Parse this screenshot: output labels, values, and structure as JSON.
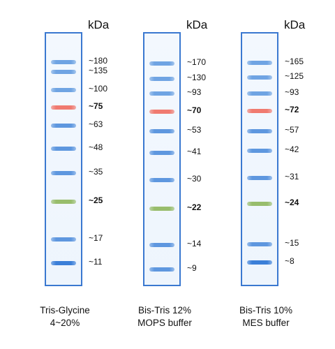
{
  "unit": "kDa",
  "lanes": [
    {
      "caption": [
        "Tris-Glycine",
        "4~20%"
      ],
      "markers": [
        {
          "label": "~180",
          "kda": 180,
          "color": "#6fa4e3",
          "bold": false
        },
        {
          "label": "~135",
          "kda": 135,
          "color": "#6fa4e3",
          "bold": false
        },
        {
          "label": "~100",
          "kda": 100,
          "color": "#6fa4e3",
          "bold": false
        },
        {
          "label": "~75",
          "kda": 75,
          "color": "#f07a70",
          "bold": true
        },
        {
          "label": "~63",
          "kda": 63,
          "color": "#5e97df",
          "bold": false
        },
        {
          "label": "~48",
          "kda": 48,
          "color": "#5e97df",
          "bold": false
        },
        {
          "label": "~35",
          "kda": 35,
          "color": "#5e97df",
          "bold": false
        },
        {
          "label": "~25",
          "kda": 25,
          "color": "#98bd6c",
          "bold": true
        },
        {
          "label": "~17",
          "kda": 17,
          "color": "#5e97df",
          "bold": false
        },
        {
          "label": "~11",
          "kda": 11,
          "color": "#3b7fd8",
          "bold": false
        }
      ]
    },
    {
      "caption": [
        "Bis-Tris 12%",
        "MOPS buffer"
      ],
      "markers": [
        {
          "label": "~170",
          "kda": 170,
          "color": "#6fa4e3",
          "bold": false
        },
        {
          "label": "~130",
          "kda": 130,
          "color": "#6fa4e3",
          "bold": false
        },
        {
          "label": "~93",
          "kda": 93,
          "color": "#6fa4e3",
          "bold": false
        },
        {
          "label": "~70",
          "kda": 70,
          "color": "#f07a70",
          "bold": true
        },
        {
          "label": "~53",
          "kda": 53,
          "color": "#5e97df",
          "bold": false
        },
        {
          "label": "~41",
          "kda": 41,
          "color": "#5e97df",
          "bold": false
        },
        {
          "label": "~30",
          "kda": 30,
          "color": "#5e97df",
          "bold": false
        },
        {
          "label": "~22",
          "kda": 22,
          "color": "#98bd6c",
          "bold": true
        },
        {
          "label": "~14",
          "kda": 14,
          "color": "#5e97df",
          "bold": false
        },
        {
          "label": "~9",
          "kda": 9,
          "color": "#5e97df",
          "bold": false
        }
      ]
    },
    {
      "caption": [
        "Bis-Tris 10%",
        "MES buffer"
      ],
      "markers": [
        {
          "label": "~165",
          "kda": 165,
          "color": "#6fa4e3",
          "bold": false
        },
        {
          "label": "~125",
          "kda": 125,
          "color": "#6fa4e3",
          "bold": false
        },
        {
          "label": "~93",
          "kda": 93,
          "color": "#6fa4e3",
          "bold": false
        },
        {
          "label": "~72",
          "kda": 72,
          "color": "#f07a70",
          "bold": true
        },
        {
          "label": "~57",
          "kda": 57,
          "color": "#5e97df",
          "bold": false
        },
        {
          "label": "~42",
          "kda": 42,
          "color": "#5e97df",
          "bold": false
        },
        {
          "label": "~31",
          "kda": 31,
          "color": "#5e97df",
          "bold": false
        },
        {
          "label": "~24",
          "kda": 24,
          "color": "#98bd6c",
          "bold": true
        },
        {
          "label": "~15",
          "kda": 15,
          "color": "#5e97df",
          "bold": false
        },
        {
          "label": "~8",
          "kda": 8,
          "color": "#3b7fd8",
          "bold": false
        }
      ]
    }
  ]
}
